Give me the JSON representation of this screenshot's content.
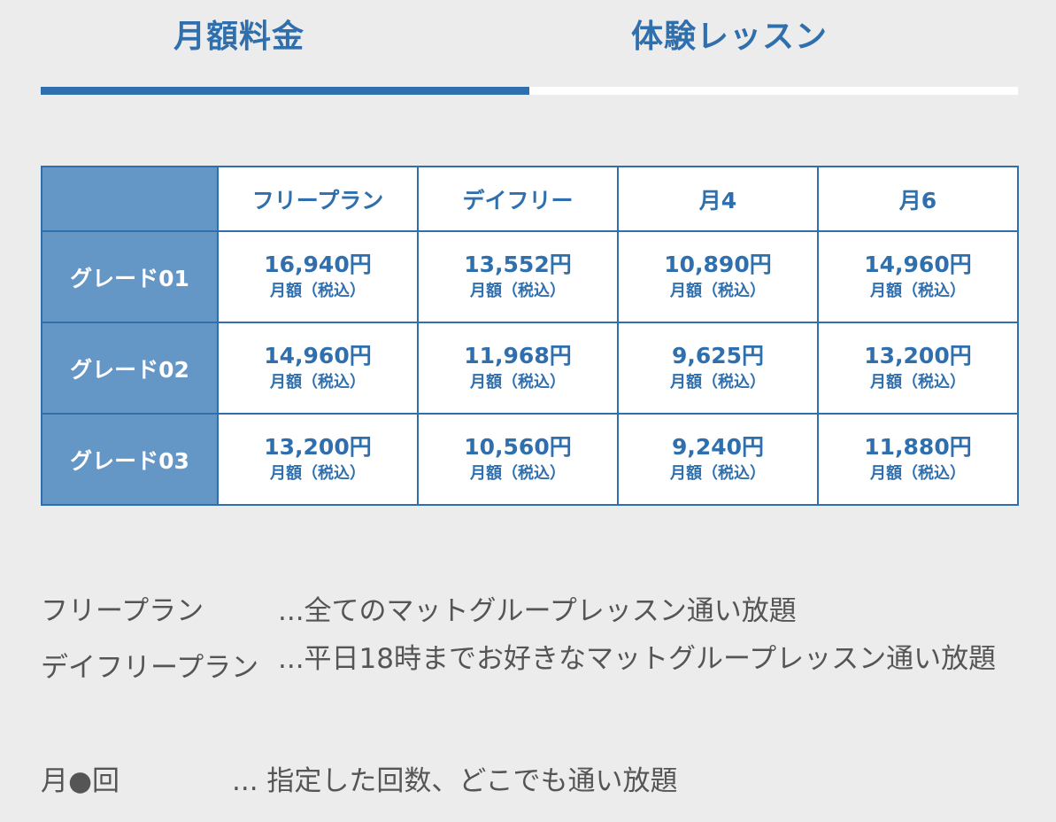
{
  "tabs": [
    {
      "label": "月額料金",
      "active": true
    },
    {
      "label": "体験レッスン",
      "active": false
    }
  ],
  "table": {
    "columns": [
      "フリープラン",
      "デイフリー",
      "月4",
      "月6"
    ],
    "rows": [
      {
        "grade": "グレード01",
        "prices": [
          "16,940円",
          "13,552円",
          "10,890円",
          "14,960円"
        ]
      },
      {
        "grade": "グレード02",
        "prices": [
          "14,960円",
          "11,968円",
          "9,625円",
          "13,200円"
        ]
      },
      {
        "grade": "グレード03",
        "prices": [
          "13,200円",
          "10,560円",
          "9,240円",
          "11,880円"
        ]
      }
    ],
    "price_note": "月額（税込）"
  },
  "descriptions": [
    {
      "term": "フリープラン",
      "text": "...全てのマットグループレッスン通い放題"
    },
    {
      "term": "デイフリープラン",
      "text": "...平日18時までお好きなマットグループレッスン通い放題"
    },
    {
      "term": "月●回",
      "text": "... 指定した回数、どこでも通い放題"
    }
  ],
  "colors": {
    "accent": "#2f6fad",
    "header_cell": "#6496c6",
    "background": "#ececec",
    "body_text": "#555555"
  }
}
